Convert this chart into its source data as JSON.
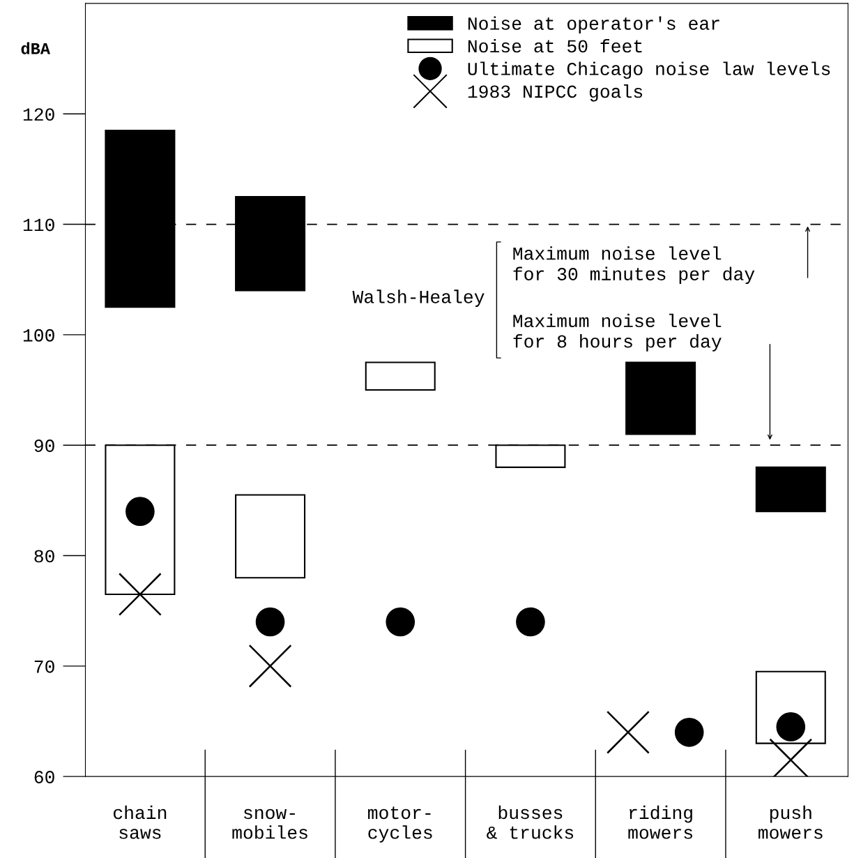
{
  "chart_data": {
    "type": "bar",
    "ylabel": "dBA",
    "categories": [
      "chain\nsaws",
      "snow-\nmobiles",
      "motor-\ncycles",
      "busses\n& trucks",
      "riding\nmowers",
      "push\nmowers"
    ],
    "series": [
      {
        "name": "Noise at operator's ear",
        "color": "#000000",
        "base": [
          102.5,
          104,
          null,
          null,
          91,
          84
        ],
        "values": [
          16,
          8.5,
          null,
          null,
          6.5,
          4
        ]
      },
      {
        "name": "Noise at 50 feet",
        "color": "#ffffff",
        "base": [
          76.5,
          78,
          95,
          88,
          null,
          63
        ],
        "values": [
          13.5,
          7.5,
          2.5,
          2,
          null,
          6.5
        ]
      },
      {
        "name": "Ultimate Chicago noise law levels",
        "type": "scatter",
        "marker": "circle",
        "color": "#000000",
        "x": [
          "chain\nsaws",
          "snow-\nmobiles",
          "motor-\ncycles",
          "busses\n& trucks",
          "riding\nmowers",
          "push\nmowers"
        ],
        "values": [
          84,
          74,
          74,
          74,
          64,
          64.5
        ]
      },
      {
        "name": "1983 NIPCC goals",
        "type": "scatter",
        "marker": "cross",
        "color": "#000000",
        "x": [
          "chain\nsaws",
          "snow-\nmobiles",
          "motor-\ncycles",
          "busses\n& trucks",
          "riding\nmowers",
          "push\nmowers"
        ],
        "values": [
          76.5,
          70,
          null,
          null,
          64,
          61.5
        ]
      }
    ],
    "ylim": [
      60,
      130
    ],
    "yticks": [
      60,
      70,
      80,
      90,
      100,
      110,
      120
    ],
    "ref_lines": [
      {
        "axis": "y",
        "value": 110,
        "line_style": "dashed",
        "color": "#000000"
      },
      {
        "axis": "y",
        "value": 90,
        "line_style": "dashed",
        "color": "#000000"
      }
    ],
    "annotations": [
      "Walsh-Healey",
      "Maximum noise level\nfor 30 minutes per day",
      "Maximum noise level\nfor 8 hours per day"
    ],
    "legend": "top right",
    "grid": false
  }
}
